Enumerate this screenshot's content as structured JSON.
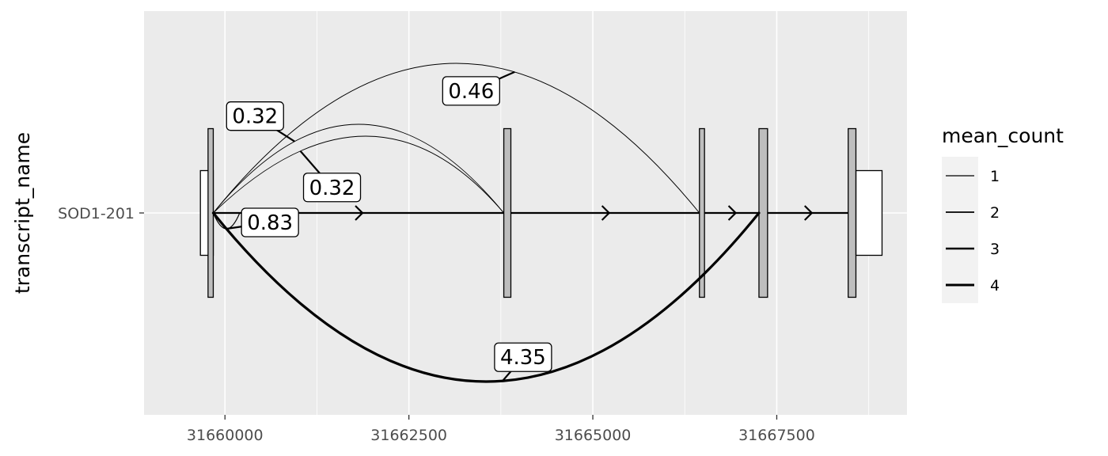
{
  "chart_data": {
    "type": "transcript-junction-plot",
    "xlabel": "",
    "ylabel": "transcript_name",
    "xlim": [
      31658900,
      31669270
    ],
    "x_ticks": [
      31660000,
      31662500,
      31665000,
      31667500
    ],
    "x_tick_labels": [
      "31660000",
      "31662500",
      "31665000",
      "31667500"
    ],
    "y_categories": [
      "SOD1-201"
    ],
    "grid": true,
    "legend_position": "right",
    "legend": {
      "title": "mean_count",
      "items": [
        {
          "label": "1",
          "value": 1
        },
        {
          "label": "2",
          "value": 2
        },
        {
          "label": "3",
          "value": 3
        },
        {
          "label": "4",
          "value": 4
        }
      ]
    },
    "transcript": {
      "name": "SOD1-201",
      "strand": "+",
      "exons": [
        {
          "start": 31659666,
          "end": 31659841,
          "type": "utr"
        },
        {
          "start": 31659770,
          "end": 31659841,
          "type": "cds"
        },
        {
          "start": 31663790,
          "end": 31663886,
          "type": "cds"
        },
        {
          "start": 31666449,
          "end": 31666518,
          "type": "cds"
        },
        {
          "start": 31667258,
          "end": 31667375,
          "type": "cds"
        },
        {
          "start": 31668471,
          "end": 31668576,
          "type": "cds"
        },
        {
          "start": 31668577,
          "end": 31668931,
          "type": "utr"
        }
      ]
    },
    "junctions": [
      {
        "start": 31659841,
        "end": 31666449,
        "mean_count": 0.46,
        "label": "0.46",
        "side": "top"
      },
      {
        "start": 31659841,
        "end": 31663790,
        "mean_count": 0.32,
        "label": "0.32",
        "side": "top"
      },
      {
        "start": 31659841,
        "end": 31663790,
        "mean_count": 0.32,
        "label": "0.32",
        "side": "top"
      },
      {
        "start": 31659841,
        "end": 31660200,
        "mean_count": 0.83,
        "label": "0.83",
        "side": "bottom"
      },
      {
        "start": 31659841,
        "end": 31667258,
        "mean_count": 4.35,
        "label": "4.35",
        "side": "bottom"
      }
    ]
  }
}
